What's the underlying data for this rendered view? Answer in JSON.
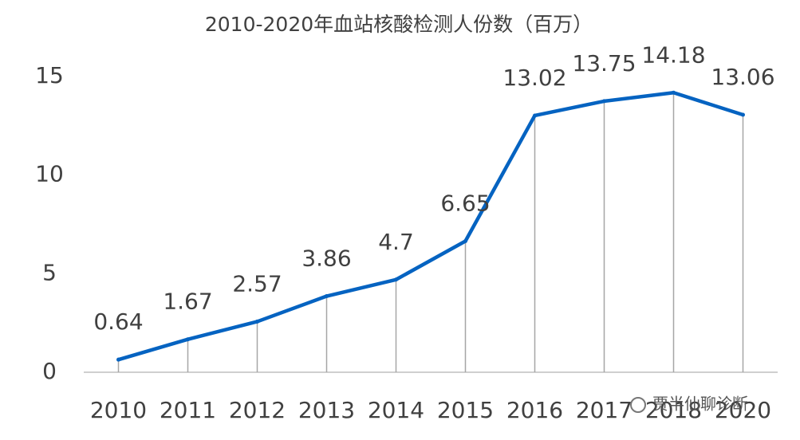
{
  "chart_data": {
    "type": "line",
    "title": "2010-2020年血站核酸检测人份数（百万）",
    "categories": [
      "2010",
      "2011",
      "2012",
      "2013",
      "2014",
      "2015",
      "2016",
      "2017",
      "2018",
      "2020"
    ],
    "series": [
      {
        "name": "血站核酸检测人份数",
        "color": "#0563c1",
        "values": [
          0.64,
          1.67,
          2.57,
          3.86,
          4.7,
          6.65,
          13.02,
          13.75,
          14.18,
          13.06
        ]
      }
    ],
    "ylim": [
      0,
      15
    ],
    "yticks": [
      0,
      5,
      10,
      15
    ],
    "drop_lines": true,
    "data_labels": true,
    "watermark": "贾半仙聊诊断"
  }
}
